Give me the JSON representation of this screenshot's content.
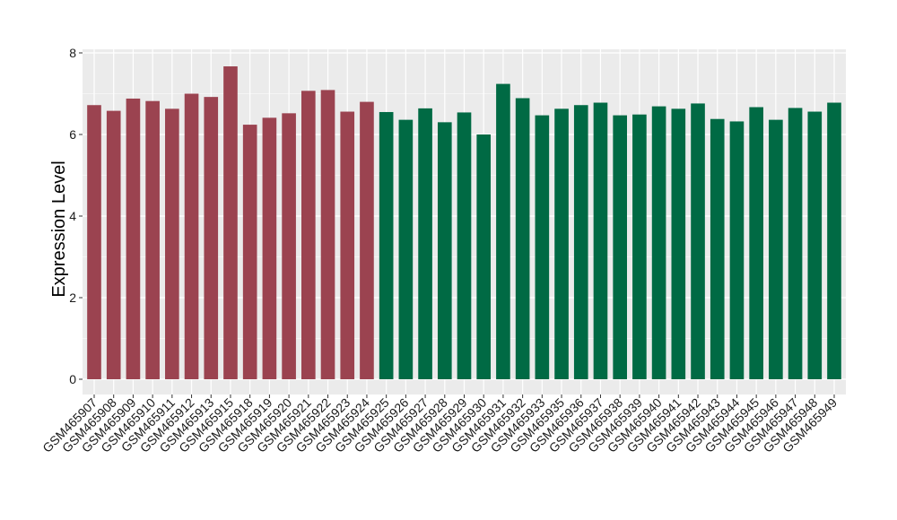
{
  "chart_data": {
    "type": "bar",
    "title": "",
    "xlabel": "",
    "ylabel": "Expression Level",
    "ylim": [
      0,
      8
    ],
    "yticks": [
      0,
      2,
      4,
      6,
      8
    ],
    "grid": true,
    "legend": "none",
    "categories": [
      "GSM465907",
      "GSM465908",
      "GSM465909",
      "GSM465910",
      "GSM465911",
      "GSM465912",
      "GSM465913",
      "GSM465915",
      "GSM465918",
      "GSM465919",
      "GSM465920",
      "GSM465921",
      "GSM465922",
      "GSM465923",
      "GSM465924",
      "GSM465925",
      "GSM465926",
      "GSM465927",
      "GSM465928",
      "GSM465929",
      "GSM465930",
      "GSM465931",
      "GSM465932",
      "GSM465933",
      "GSM465935",
      "GSM465936",
      "GSM465937",
      "GSM465938",
      "GSM465939",
      "GSM465940",
      "GSM465941",
      "GSM465942",
      "GSM465943",
      "GSM465944",
      "GSM465945",
      "GSM465946",
      "GSM465947",
      "GSM465948",
      "GSM465949"
    ],
    "values": [
      6.72,
      6.58,
      6.88,
      6.82,
      6.63,
      7.0,
      6.92,
      7.67,
      6.24,
      6.41,
      6.52,
      7.07,
      7.09,
      6.56,
      6.8,
      6.55,
      6.36,
      6.64,
      6.3,
      6.54,
      6.0,
      7.24,
      6.89,
      6.47,
      6.63,
      6.72,
      6.78,
      6.47,
      6.49,
      6.69,
      6.63,
      6.76,
      6.38,
      6.32,
      6.67,
      6.36,
      6.65,
      6.56,
      6.78
    ],
    "groups": [
      {
        "count": 15,
        "color": "#9b4350"
      },
      {
        "count": 24,
        "color": "#006a44"
      }
    ]
  },
  "colors": {
    "panel_background": "#ebebeb",
    "grid_line": "#ffffff",
    "text": "#1a1a1a"
  }
}
